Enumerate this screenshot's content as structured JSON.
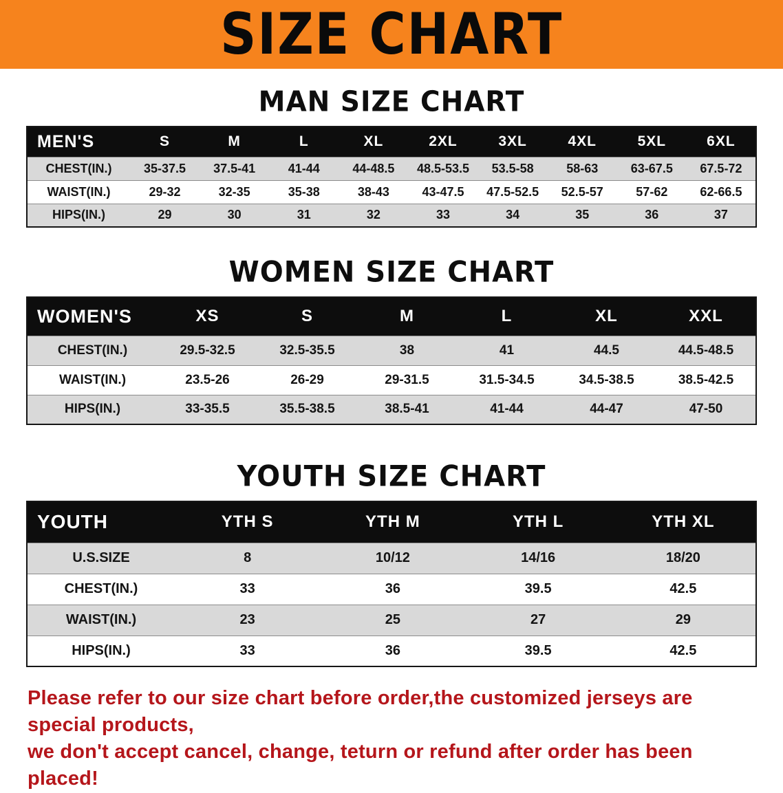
{
  "banner": {
    "title": "SIZE CHART",
    "bg_color": "#f6831d",
    "text_color": "#0a0a0a"
  },
  "sections": [
    {
      "heading": "MAN SIZE CHART",
      "table": {
        "corner_label": "MEN'S",
        "columns": [
          "S",
          "M",
          "L",
          "XL",
          "2XL",
          "3XL",
          "4XL",
          "5XL",
          "6XL"
        ],
        "rows": [
          {
            "label": "CHEST(IN.)",
            "values": [
              "35-37.5",
              "37.5-41",
              "41-44",
              "44-48.5",
              "48.5-53.5",
              "53.5-58",
              "58-63",
              "63-67.5",
              "67.5-72"
            ]
          },
          {
            "label": "WAIST(IN.)",
            "values": [
              "29-32",
              "32-35",
              "35-38",
              "38-43",
              "43-47.5",
              "47.5-52.5",
              "52.5-57",
              "57-62",
              "62-66.5"
            ]
          },
          {
            "label": "HIPS(IN.)",
            "values": [
              "29",
              "30",
              "31",
              "32",
              "33",
              "34",
              "35",
              "36",
              "37"
            ]
          }
        ]
      }
    },
    {
      "heading": "WOMEN SIZE CHART",
      "table": {
        "corner_label": "WOMEN'S",
        "columns": [
          "XS",
          "S",
          "M",
          "L",
          "XL",
          "XXL"
        ],
        "rows": [
          {
            "label": "CHEST(IN.)",
            "values": [
              "29.5-32.5",
              "32.5-35.5",
              "38",
              "41",
              "44.5",
              "44.5-48.5"
            ]
          },
          {
            "label": "WAIST(IN.)",
            "values": [
              "23.5-26",
              "26-29",
              "29-31.5",
              "31.5-34.5",
              "34.5-38.5",
              "38.5-42.5"
            ]
          },
          {
            "label": "HIPS(IN.)",
            "values": [
              "33-35.5",
              "35.5-38.5",
              "38.5-41",
              "41-44",
              "44-47",
              "47-50"
            ]
          }
        ]
      }
    },
    {
      "heading": "YOUTH SIZE CHART",
      "table": {
        "corner_label": "YOUTH",
        "columns": [
          "YTH S",
          "YTH M",
          "YTH L",
          "YTH XL"
        ],
        "rows": [
          {
            "label": "U.S.SIZE",
            "values": [
              "8",
              "10/12",
              "14/16",
              "18/20"
            ]
          },
          {
            "label": "CHEST(IN.)",
            "values": [
              "33",
              "36",
              "39.5",
              "42.5"
            ]
          },
          {
            "label": "WAIST(IN.)",
            "values": [
              "23",
              "25",
              "27",
              "29"
            ]
          },
          {
            "label": "HIPS(IN.)",
            "values": [
              "33",
              "36",
              "39.5",
              "42.5"
            ]
          }
        ]
      }
    }
  ],
  "footer": {
    "line1": "Please refer to our size chart before order,the customized jerseys are special products,",
    "line2": "we don't accept cancel, change, teturn or refund after order has been placed!",
    "text_color": "#b5161b"
  }
}
